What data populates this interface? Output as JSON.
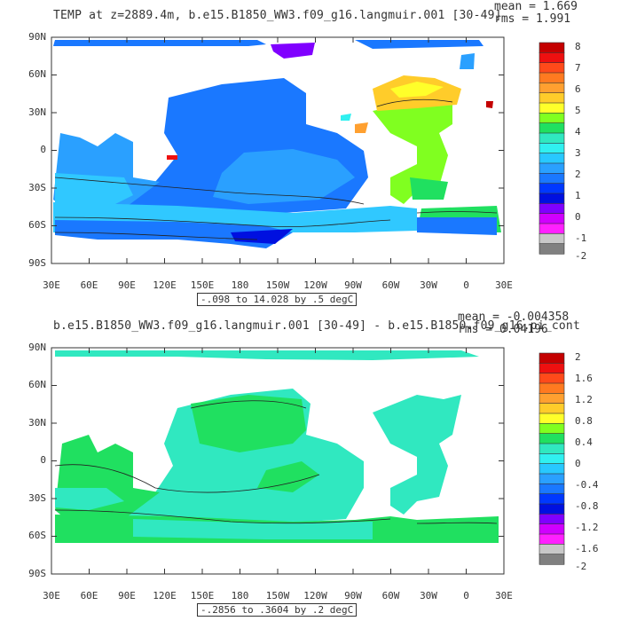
{
  "panels": [
    {
      "title": "TEMP at z=2889.4m, b.e15.B1850_WW3.f09_g16.langmuir.001 [30-49]",
      "mean_text": "mean = 1.669",
      "rms_text": "rms = 1.991",
      "range_text": "-.098 to 14.028 by .5 degC",
      "colorbar_labels": [
        "8",
        "7",
        "6",
        "5",
        "4",
        "3",
        "2",
        "1",
        "0",
        "-1",
        "-2"
      ],
      "colorbar_colors": [
        "#c40000",
        "#ee1010",
        "#ff4a1a",
        "#ff7a20",
        "#ffa030",
        "#ffcc2a",
        "#ffff2a",
        "#80ff20",
        "#20e060",
        "#30e8c0",
        "#30f0f0",
        "#28c8ff",
        "#2aa0ff",
        "#1a78ff",
        "#0038ff",
        "#0010e0",
        "#8000ff",
        "#d000ff",
        "#ff20ff",
        "#c8c8c8",
        "#808080"
      ]
    },
    {
      "title": "b.e15.B1850_WW3.f09_g16.langmuir.001 [30-49] - b.e15.B1850.f09_g16.pi_cont",
      "mean_text": "mean = -0.004358",
      "rms_text": "rms = 0.04196",
      "range_text": "-.2856 to .3604 by .2 degC",
      "colorbar_labels": [
        "2",
        "1.6",
        "1.2",
        "0.8",
        "0.4",
        "0",
        "-0.4",
        "-0.8",
        "-1.2",
        "-1.6",
        "-2"
      ],
      "colorbar_colors": [
        "#c40000",
        "#ee1010",
        "#ff4a1a",
        "#ff7a20",
        "#ffa030",
        "#ffcc2a",
        "#ffff2a",
        "#80ff20",
        "#20e060",
        "#30e8c0",
        "#30f0f0",
        "#28c8ff",
        "#2aa0ff",
        "#1a78ff",
        "#0038ff",
        "#0010e0",
        "#8000ff",
        "#d000ff",
        "#ff20ff",
        "#c8c8c8",
        "#808080"
      ]
    }
  ],
  "lat_labels": [
    "90N",
    "60N",
    "30N",
    "0",
    "30S",
    "60S",
    "90S"
  ],
  "lon_labels": [
    "30E",
    "60E",
    "90E",
    "120E",
    "150E",
    "180",
    "150W",
    "120W",
    "90W",
    "60W",
    "30W",
    "0",
    "30E"
  ]
}
